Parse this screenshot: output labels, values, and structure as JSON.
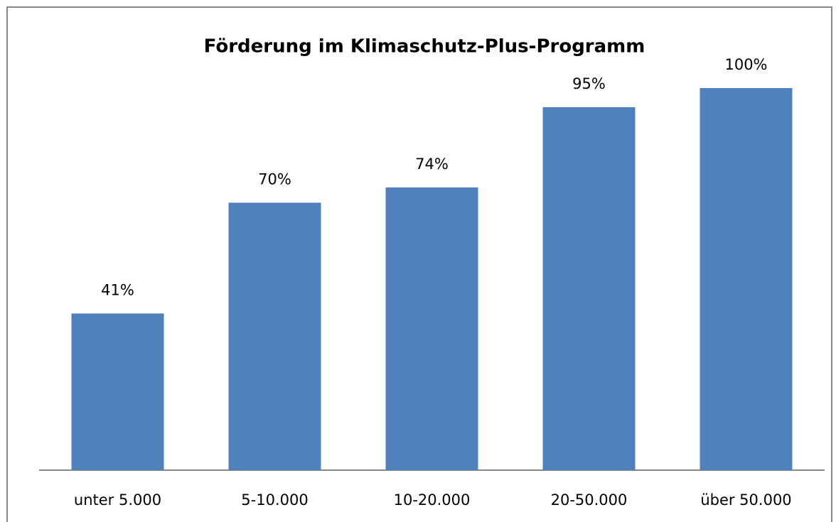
{
  "chart_data": {
    "type": "bar",
    "title": "Förderung im Klimaschutz-Plus-Programm",
    "categories": [
      "unter 5.000",
      "5-10.000",
      "10-20.000",
      "20-50.000",
      "über 50.000"
    ],
    "values": [
      41,
      70,
      74,
      95,
      100
    ],
    "value_labels": [
      "41%",
      "70%",
      "74%",
      "95%",
      "100%"
    ],
    "color": "#4f81bd",
    "ylim": [
      0,
      100
    ]
  }
}
